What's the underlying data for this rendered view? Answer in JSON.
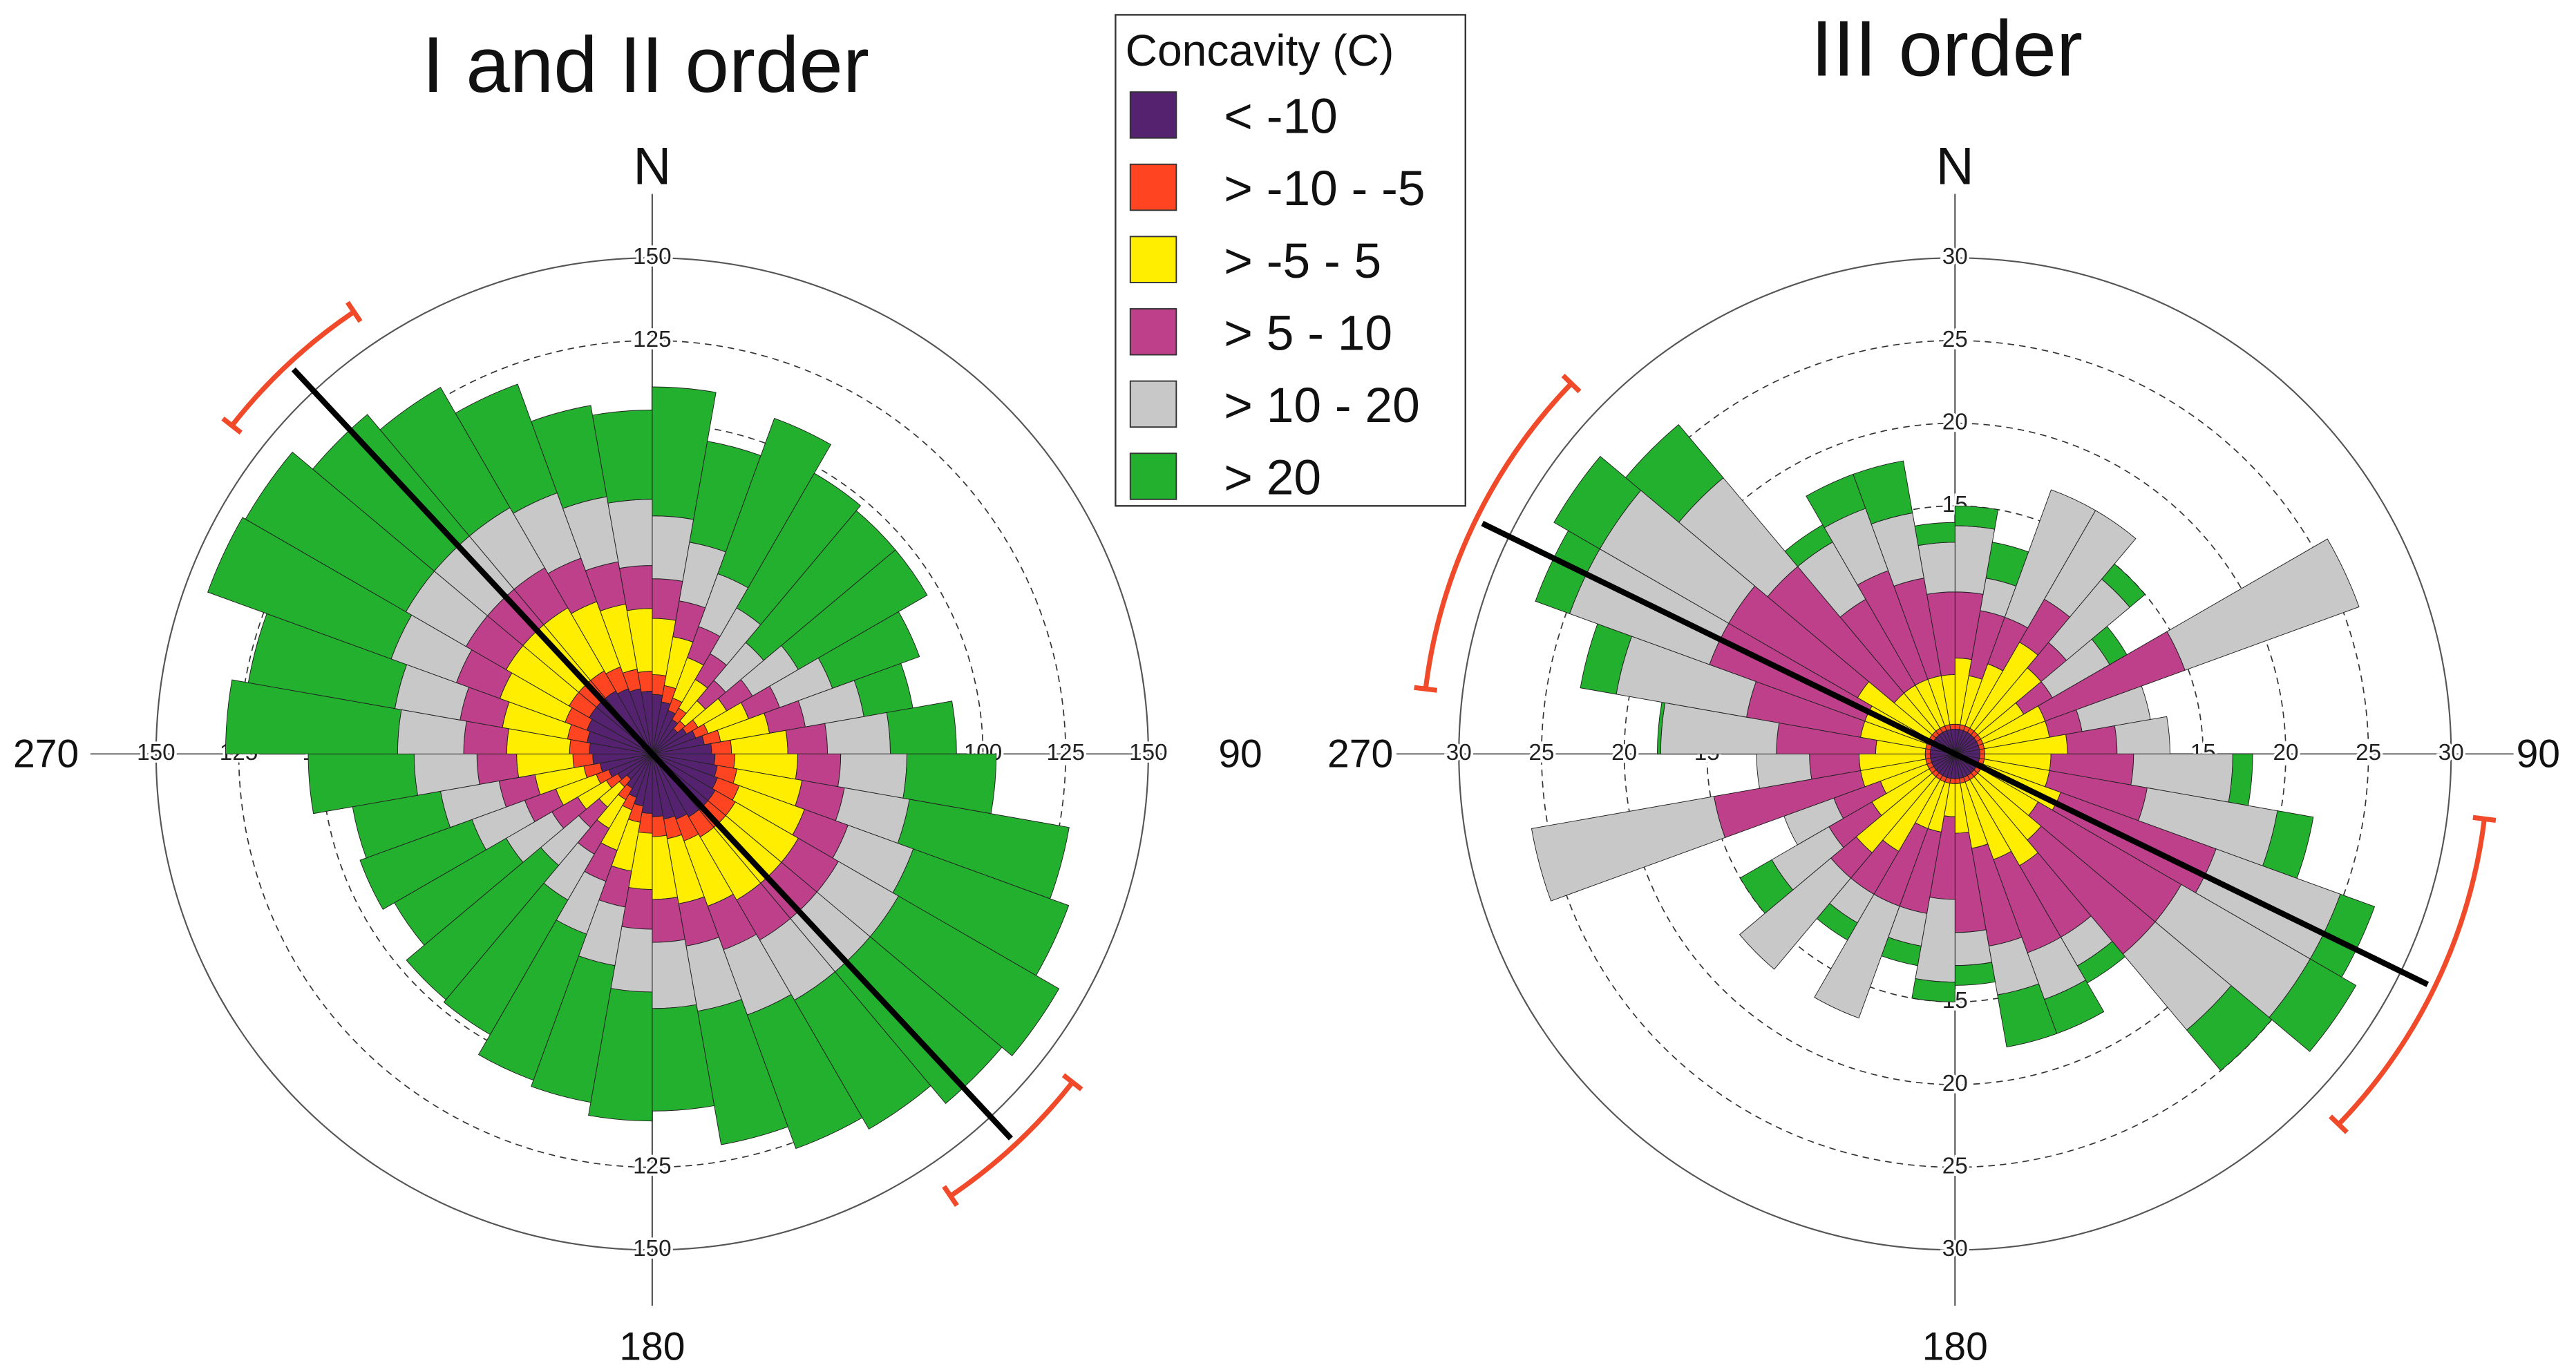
{
  "legend": {
    "title": "Concavity (C)",
    "classes": [
      {
        "label": "< -10",
        "color": "#54226F"
      },
      {
        "label": "> -10 - -5",
        "color": "#FF4422"
      },
      {
        "label": "> -5 - 5",
        "color": "#FFEE00"
      },
      {
        "label": "> 5 - 10",
        "color": "#BE3F8A"
      },
      {
        "label": "> 10 - 20",
        "color": "#C8C8C8"
      },
      {
        "label": "> 20",
        "color": "#22B02E"
      }
    ]
  },
  "colors": {
    "mean_line": "#000000",
    "confidence_arc": "#F04A2A"
  },
  "chart_data": [
    {
      "type": "bar",
      "polar": true,
      "stacked": true,
      "title": "I and II order",
      "direction_labels": {
        "north": "N",
        "east": "90",
        "south": "180",
        "west": "270"
      },
      "radial_max": 150,
      "radial_ticks": [
        100,
        125,
        150
      ],
      "sector_width_deg": 10,
      "sector_start_deg": [
        0,
        10,
        20,
        30,
        40,
        50,
        60,
        70,
        80,
        90,
        100,
        110,
        120,
        130,
        140,
        150,
        160,
        170,
        180,
        190,
        200,
        210,
        220,
        230,
        240,
        250,
        260,
        270,
        280,
        290,
        300,
        310,
        320,
        330,
        340,
        350
      ],
      "series": [
        {
          "name": "< -10",
          "values": [
            18,
            16,
            14,
            12,
            10,
            12,
            14,
            16,
            18,
            19,
            20,
            21,
            22,
            22,
            22,
            21,
            20,
            19,
            18,
            16,
            14,
            12,
            10,
            12,
            14,
            16,
            18,
            19,
            20,
            21,
            22,
            22,
            22,
            21,
            20,
            19
          ]
        },
        {
          "name": "> -10 - -5",
          "values": [
            6,
            5,
            4,
            4,
            3,
            4,
            4,
            5,
            6,
            6,
            6,
            7,
            7,
            7,
            7,
            7,
            6,
            6,
            6,
            5,
            4,
            4,
            3,
            4,
            4,
            5,
            6,
            6,
            6,
            7,
            7,
            7,
            7,
            7,
            6,
            6
          ]
        },
        {
          "name": "> -5 - 5",
          "values": [
            17,
            15,
            13,
            10,
            8,
            10,
            13,
            15,
            17,
            19,
            20,
            21,
            22,
            22,
            22,
            21,
            20,
            19,
            17,
            15,
            13,
            10,
            8,
            10,
            13,
            15,
            17,
            19,
            20,
            21,
            22,
            22,
            22,
            21,
            20,
            19
          ]
        },
        {
          "name": "> 5 - 10",
          "values": [
            12,
            11,
            10,
            9,
            8,
            9,
            10,
            11,
            12,
            13,
            13,
            14,
            14,
            14,
            14,
            14,
            13,
            13,
            12,
            11,
            10,
            9,
            8,
            9,
            10,
            11,
            12,
            13,
            13,
            14,
            14,
            14,
            14,
            14,
            13,
            13
          ]
        },
        {
          "name": "> 10 - 20",
          "values": [
            19,
            18,
            17,
            16,
            15,
            16,
            17,
            18,
            19,
            20,
            20,
            21,
            21,
            21,
            21,
            21,
            20,
            20,
            19,
            18,
            17,
            16,
            15,
            16,
            17,
            18,
            19,
            20,
            20,
            21,
            21,
            21,
            21,
            21,
            20,
            20
          ]
        },
        {
          "name": "> 20",
          "values": [
            39,
            31,
            50,
            47,
            52,
            45,
            28,
            15,
            20,
            27,
            49,
            50,
            56,
            52,
            45,
            43,
            41,
            31,
            39,
            42,
            47,
            47,
            53,
            39,
            36,
            27,
            32,
            52,
            45,
            59,
            56,
            48,
            42,
            35,
            28,
            27
          ]
        }
      ],
      "mean_direction_deg": 137,
      "confidence_interval_deg": [
        128,
        146
      ]
    },
    {
      "type": "bar",
      "polar": true,
      "stacked": true,
      "title": "III order",
      "direction_labels": {
        "north": "N",
        "east": "90",
        "south": "180",
        "west": "270"
      },
      "radial_max": 30,
      "radial_ticks": [
        15,
        20,
        25,
        30
      ],
      "sector_width_deg": 10,
      "sector_start_deg": [
        0,
        10,
        20,
        30,
        40,
        50,
        60,
        70,
        80,
        90,
        100,
        110,
        120,
        130,
        140,
        150,
        160,
        170,
        180,
        190,
        200,
        210,
        220,
        230,
        240,
        250,
        260,
        270,
        280,
        290,
        300,
        310,
        320,
        330,
        340,
        350
      ],
      "series": [
        {
          "name": "< -10",
          "values": [
            1.5,
            1.5,
            1.5,
            1.5,
            1.5,
            1.5,
            1.5,
            1.5,
            1.5,
            1.5,
            1.5,
            1.5,
            1.5,
            1.5,
            1.5,
            1.5,
            1.5,
            1.5,
            1.5,
            1.5,
            1.5,
            1.5,
            1.5,
            1.5,
            1.5,
            1.5,
            1.5,
            1.5,
            1.5,
            1.5,
            1.5,
            1.5,
            1.5,
            1.5,
            1.5,
            1.5
          ]
        },
        {
          "name": "> -10 - -5",
          "values": [
            0.3,
            0.3,
            0.3,
            0.3,
            0.3,
            0.3,
            0.3,
            0.3,
            0.3,
            0.3,
            0.3,
            0.3,
            0.3,
            0.3,
            0.3,
            0.3,
            0.3,
            0.3,
            0.3,
            0.3,
            0.3,
            0.3,
            0.3,
            0.3,
            0.3,
            0.3,
            0.3,
            0.3,
            0.3,
            0.3,
            0.3,
            0.3,
            0.3,
            0.3,
            0.3,
            0.3
          ]
        },
        {
          "name": "> -5 - 5",
          "values": [
            4,
            3,
            4,
            6,
            5,
            3,
            4,
            4,
            5,
            4,
            4,
            5,
            4,
            5,
            6,
            5,
            4,
            3,
            2,
            3,
            3,
            5,
            6,
            4,
            3,
            4,
            4,
            3,
            4,
            4,
            5,
            3,
            3,
            3,
            3,
            3
          ]
        },
        {
          "name": "> 5 - 10",
          "values": [
            4,
            4,
            3,
            3,
            2,
            2,
            9,
            2,
            3,
            5,
            6,
            10,
            10,
            9,
            5,
            6,
            6,
            6,
            5,
            5,
            5,
            3,
            2,
            3,
            3,
            9,
            3,
            6,
            7,
            10,
            9,
            10,
            6,
            7,
            6,
            5
          ]
        },
        {
          "name": "> 10 - 20",
          "values": [
            4,
            2,
            8.2,
            6.2,
            5,
            4,
            11.2,
            4.2,
            3.2,
            6,
            8,
            8,
            9,
            6,
            2,
            3,
            3,
            2,
            5,
            2,
            7.2,
            2,
            7.2,
            4,
            3.2,
            11.2,
            3.2,
            7,
            8,
            9,
            9,
            7,
            4,
            4,
            4,
            3
          ]
        },
        {
          "name": "> 20",
          "values": [
            1.2,
            2.2,
            0,
            0,
            1.2,
            1.2,
            0,
            0,
            0,
            1.2,
            2.2,
            2.2,
            3.2,
            3.2,
            1.2,
            2.2,
            3.2,
            1.2,
            1.2,
            1.2,
            0,
            1.2,
            0,
            2.2,
            0,
            0,
            0,
            0.2,
            2.2,
            2.2,
            3.2,
            4.2,
            1.2,
            2.2,
            3.2,
            1.2
          ]
        }
      ],
      "mean_direction_deg": 116,
      "confidence_interval_deg": [
        97,
        134
      ]
    }
  ]
}
